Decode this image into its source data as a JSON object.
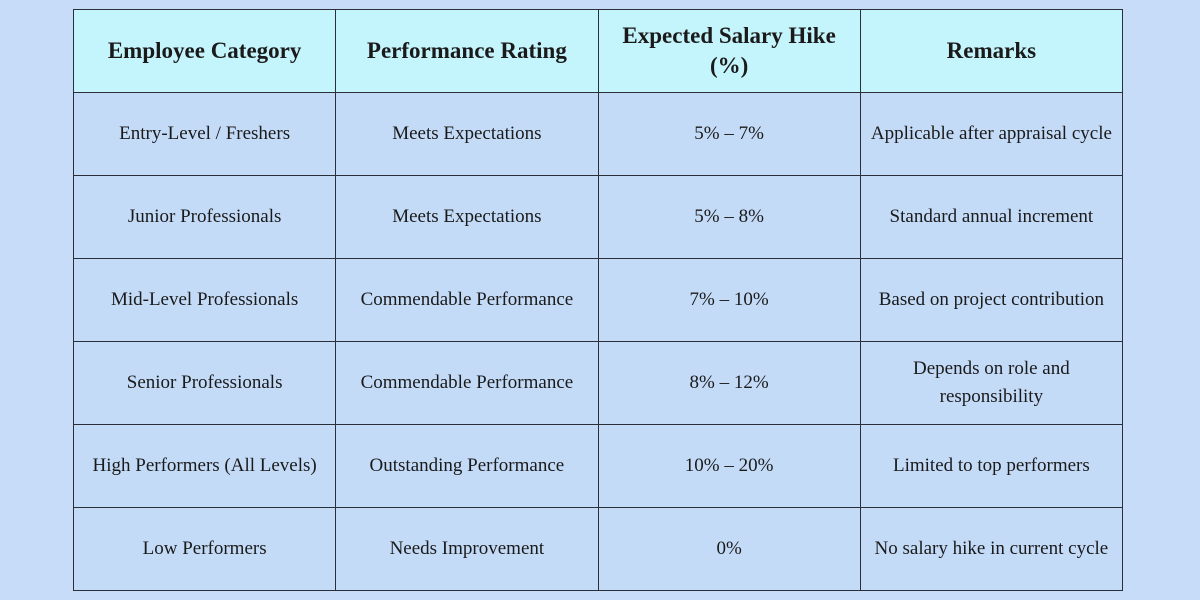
{
  "table": {
    "header": [
      "Employee Category",
      "Performance Rating",
      "Expected Salary Hike (%)",
      "Remarks"
    ],
    "rows": [
      [
        "Entry-Level / Freshers",
        "Meets Expectations",
        "5% – 7%",
        "Applicable after appraisal cycle"
      ],
      [
        "Junior Professionals",
        "Meets Expectations",
        "5% – 8%",
        "Standard annual increment"
      ],
      [
        "Mid-Level Professionals",
        "Commendable Performance",
        "7% – 10%",
        "Based on project contribution"
      ],
      [
        "Senior Professionals",
        "Commendable Performance",
        "8% – 12%",
        "Depends on role and responsibility"
      ],
      [
        "High Performers (All Levels)",
        "Outstanding Performance",
        "10% – 20%",
        "Limited to top performers"
      ],
      [
        "Low Performers",
        "Needs Improvement",
        "0%",
        "No salary hike in current cycle"
      ]
    ]
  }
}
